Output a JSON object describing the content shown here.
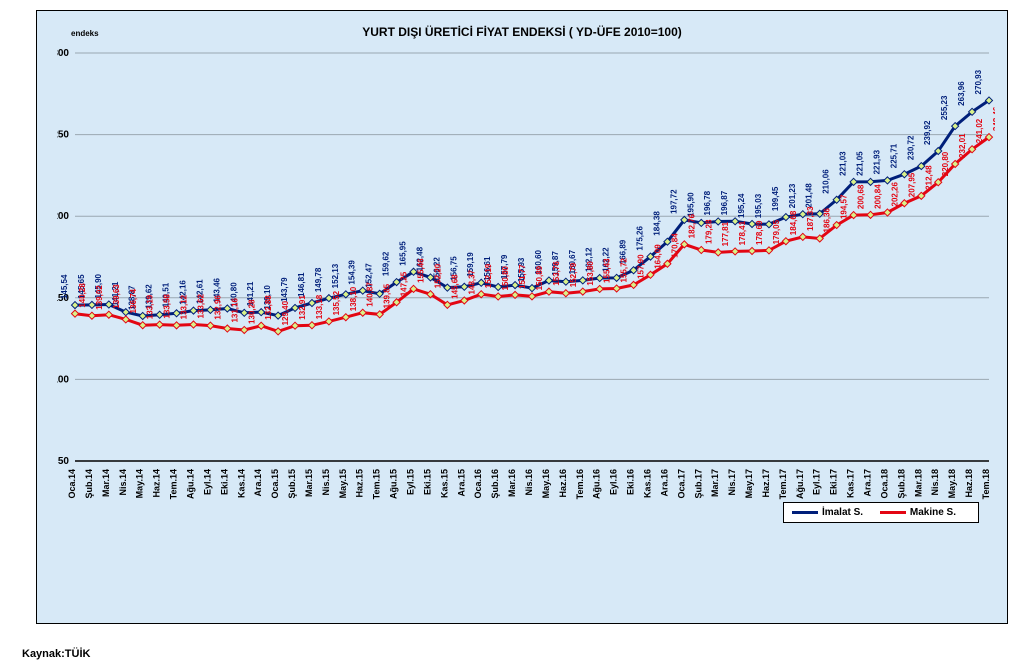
{
  "title": "YURT DIŞI ÜRETİCİ FİYAT ENDEKSİ ( YD-ÜFE 2010=100)",
  "y_title": "endeks",
  "source": "Kaynak:TÜİK",
  "chart": {
    "type": "line",
    "background_color": "#d7e9f7",
    "grid_color": "#9aa8b2",
    "ylim": [
      50,
      300
    ],
    "ytick_step": 50,
    "categories": [
      "Oca.14",
      "Şub.14",
      "Mar.14",
      "Nis.14",
      "May.14",
      "Haz.14",
      "Tem.14",
      "Ağu.14",
      "Eyl.14",
      "Eki.14",
      "Kas.14",
      "Ara.14",
      "Oca.15",
      "Şub.15",
      "Mar.15",
      "Nis.15",
      "May.15",
      "Haz.15",
      "Tem.15",
      "Ağu.15",
      "Eyl.15",
      "Eki.15",
      "Kas.15",
      "Ara.15",
      "Oca.16",
      "Şub.16",
      "Mar.16",
      "Nis.16",
      "May.16",
      "Haz.16",
      "Tem.16",
      "Ağu.16",
      "Eyl.16",
      "Eki.16",
      "Kas.16",
      "Ara.16",
      "Oca.17",
      "Şub.17",
      "Mar.17",
      "Nis.17",
      "May.17",
      "Haz.17",
      "Tem.17",
      "Ağu.17",
      "Eyl.17",
      "Eki.17",
      "Kas.17",
      "Ara.17",
      "Oca.18",
      "Şub.18",
      "Mar.18",
      "Nis.18",
      "May.18",
      "Haz.18",
      "Tem.18"
    ],
    "series": [
      {
        "name": "İmalat S.",
        "color": "#001f7a",
        "marker_color": "#d9f28a",
        "line_width": 3,
        "values": [
          145.54,
          145.65,
          145.9,
          141.21,
          138.87,
          139.62,
          140.51,
          142.16,
          142.61,
          143.46,
          140.8,
          141.21,
          139.1,
          143.79,
          146.81,
          149.78,
          152.13,
          154.39,
          152.47,
          159.62,
          165.95,
          162.48,
          156.22,
          156.75,
          159.19,
          156.61,
          157.79,
          155.93,
          160.6,
          159.87,
          160.67,
          162.12,
          162.22,
          166.89,
          175.26,
          184.38,
          197.72,
          195.9,
          196.78,
          196.87,
          195.24,
          195.03,
          199.45,
          201.23,
          201.48,
          210.06,
          221.03,
          221.05,
          221.93,
          225.71,
          230.72,
          239.92,
          255.23,
          263.96,
          270.93
        ]
      },
      {
        "name": "Makine S.",
        "color": "#e30613",
        "marker_color": "#d9f28a",
        "line_width": 3,
        "values": [
          140.28,
          139.02,
          139.63,
          136.74,
          133.19,
          133.58,
          133.12,
          133.62,
          132.96,
          131.16,
          130.28,
          132.88,
          129.4,
          132.91,
          133.18,
          135.52,
          138.1,
          140.87,
          139.85,
          147.25,
          155.46,
          152.2,
          145.68,
          148.37,
          152.19,
          150.8,
          151.77,
          150.89,
          153.76,
          152.79,
          153.8,
          155.43,
          155.72,
          157.9,
          164.09,
          170.84,
          182.76,
          179.28,
          177.81,
          178.41,
          178.69,
          179.05,
          184.68,
          187.33,
          186.36,
          194.57,
          200.68,
          200.84,
          202.26,
          207.95,
          212.48,
          220.8,
          232.01,
          241.02,
          248.46
        ]
      }
    ],
    "legend_position": "bottom-right",
    "label_fontsize": 8,
    "xaxis_rotation": -90
  }
}
